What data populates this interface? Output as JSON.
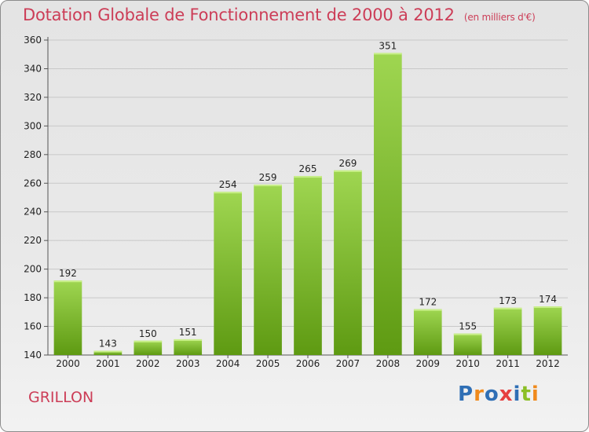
{
  "header": {
    "title": "Dotation Globale de Fonctionnement de 2000 à 2012",
    "unit": "(en milliers d'€)"
  },
  "footer": {
    "commune": "GRILLON",
    "logo_text": "Proxiti",
    "logo_colors": [
      "#2f6fb5",
      "#f08a1c",
      "#2f6fb5",
      "#e63f3f",
      "#2f6fb5",
      "#8cbf26",
      "#f08a1c"
    ]
  },
  "colors": {
    "bar_top": "#9fd651",
    "bar_bottom": "#5e9a12",
    "title": "#cc3d57",
    "grid": "#c8c8c8"
  },
  "chart_data": {
    "type": "bar",
    "title": "Dotation Globale de Fonctionnement de 2000 à 2012",
    "subtitle": "(en milliers d'€)",
    "xlabel": "",
    "ylabel": "",
    "ylim": [
      140,
      360
    ],
    "yticks": [
      140,
      160,
      180,
      200,
      220,
      240,
      260,
      280,
      300,
      320,
      340,
      360
    ],
    "grid": true,
    "categories": [
      "2000",
      "2001",
      "2002",
      "2003",
      "2004",
      "2005",
      "2006",
      "2007",
      "2008",
      "2009",
      "2010",
      "2011",
      "2012"
    ],
    "values": [
      192,
      143,
      150,
      151,
      254,
      259,
      265,
      269,
      351,
      172,
      155,
      173,
      174
    ]
  }
}
